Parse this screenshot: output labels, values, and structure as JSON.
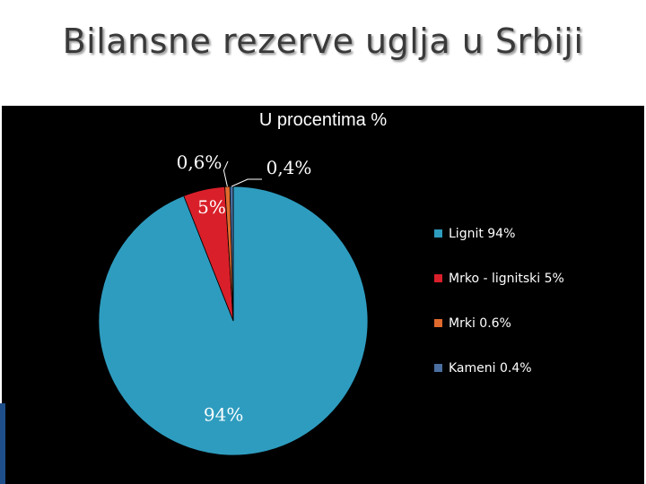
{
  "slide": {
    "title": "Bilansne rezerve uglja u Srbiji"
  },
  "chart_data": {
    "type": "pie",
    "title": "U procentima %",
    "categories": [
      "Lignit",
      "Mrko - lignitski",
      "Mrki",
      "Kameni"
    ],
    "values": [
      94,
      5,
      0.6,
      0.4
    ],
    "colors": [
      "#2e9cbf",
      "#d9202a",
      "#e06a2e",
      "#4a6fa0"
    ],
    "data_labels": [
      "94%",
      "5%",
      "0,6%",
      "0,4%"
    ],
    "legend": [
      "Lignit 94%",
      "Mrko - lignitski 5%",
      "Mrki 0.6%",
      "Kameni 0.4%"
    ],
    "legend_position": "right",
    "background": "#000000"
  }
}
